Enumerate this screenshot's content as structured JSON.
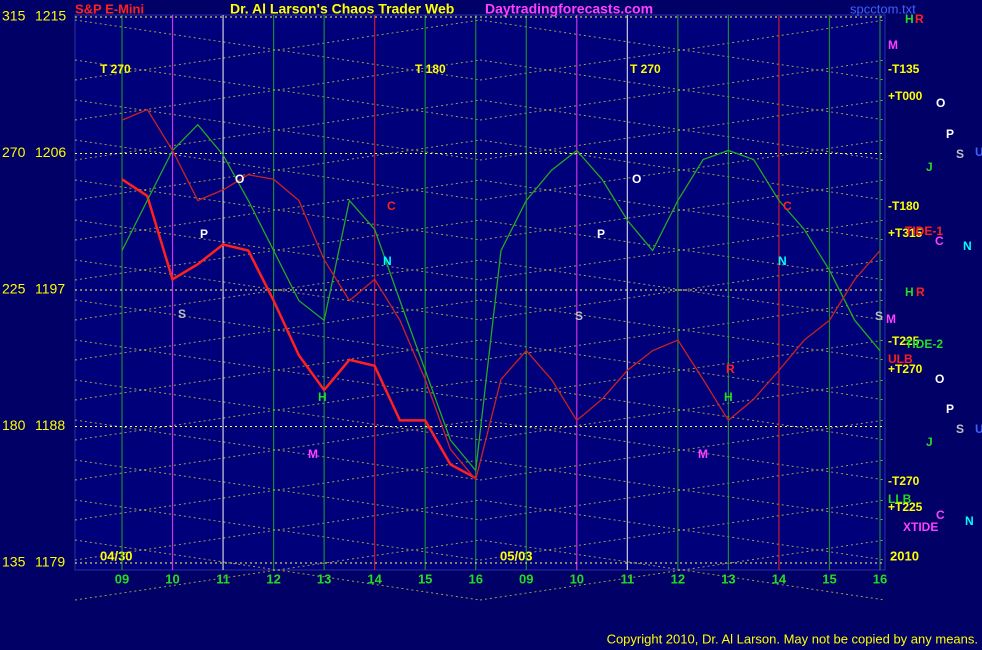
{
  "chart_data": {
    "type": "line",
    "subtitle": "S&P E-Mini",
    "title": "Dr. Al Larson's Chaos Trader Web",
    "site": "Daytradingforecasts.com",
    "file": "spcctom.txt",
    "copyright": "Copyright 2010, Dr. Al Larson. May not be copied by any means.",
    "dates": [
      "04/30",
      "05/03"
    ],
    "year": "2010",
    "categories": [
      "09",
      null,
      "10",
      null,
      "11",
      null,
      "12",
      null,
      "13",
      null,
      "14",
      null,
      "15",
      null,
      "16",
      null,
      "09",
      null,
      "10",
      null,
      "11",
      null,
      "12",
      null,
      "13",
      null,
      "14",
      null,
      "15",
      null,
      "16"
    ],
    "ylim": [
      1179,
      1215
    ],
    "yticks": [
      1215,
      1206,
      1197,
      1188,
      1179
    ],
    "y2lim": [
      135,
      315
    ],
    "y2ticks": [
      315,
      270,
      225,
      180,
      135
    ],
    "grid": true,
    "series": [
      {
        "color": "#ff2020",
        "values": [
          1204.3,
          1203.2,
          1197.7,
          1198.7,
          1200.0,
          1199.6,
          1196.3,
          1192.7,
          1190.4,
          1192.4,
          1192.0,
          1188.4,
          1188.4,
          1185.5,
          1184.6,
          null,
          null,
          null,
          null,
          null,
          null,
          null,
          null,
          null,
          null,
          null,
          null,
          null,
          null,
          null,
          null
        ]
      },
      {
        "color": "#22aa22",
        "values": [
          1199.6,
          1202.9,
          1206.2,
          1207.9,
          1205.9,
          1202.9,
          1199.6,
          1196.3,
          1195.0,
          1202.9,
          1201.0,
          1196.3,
          1191.7,
          1187.1,
          1185.1,
          1199.6,
          1202.9,
          1204.9,
          1206.2,
          1204.3,
          1201.6,
          1199.6,
          1202.9,
          1205.6,
          1206.2,
          1205.6,
          1202.9,
          1201.0,
          1198.3,
          1195.0,
          1193.0
        ]
      },
      {
        "color": "#cc2222",
        "values": [
          1208.2,
          1208.9,
          1206.2,
          1202.9,
          1203.6,
          1204.6,
          1204.3,
          1202.9,
          1199.0,
          1196.3,
          1197.7,
          1195.0,
          1191.1,
          1186.5,
          1184.5,
          1191.1,
          1193.0,
          1191.1,
          1188.4,
          1189.8,
          1191.7,
          1193.0,
          1193.7,
          1191.1,
          1188.4,
          1189.8,
          1191.7,
          1193.7,
          1195.0,
          1197.7,
          1199.6
        ]
      }
    ],
    "annotations": [
      {
        "text": "T 270",
        "color": "#ffff00"
      },
      {
        "text": "T 180",
        "color": "#ffff00"
      },
      {
        "text": "T 270",
        "color": "#ffff00"
      },
      {
        "text": "O",
        "color": "#ffffff"
      },
      {
        "text": "O",
        "color": "#ffffff"
      },
      {
        "text": "P",
        "color": "#ffffff"
      },
      {
        "text": "P",
        "color": "#ffffff"
      },
      {
        "text": "C",
        "color": "#ff2020"
      },
      {
        "text": "C",
        "color": "#ff2020"
      },
      {
        "text": "N",
        "color": "#00ffff"
      },
      {
        "text": "N",
        "color": "#00ffff"
      },
      {
        "text": "S",
        "color": "#c0c0c0"
      },
      {
        "text": "S",
        "color": "#c0c0c0"
      },
      {
        "text": "H",
        "color": "#22dd22"
      },
      {
        "text": "H",
        "color": "#22dd22"
      },
      {
        "text": "M",
        "color": "#ff40ff"
      },
      {
        "text": "M",
        "color": "#ff40ff"
      },
      {
        "text": "R",
        "color": "#ff2020"
      },
      {
        "text": "H",
        "color": "#22dd22"
      },
      {
        "text": "R",
        "color": "#ff2020"
      },
      {
        "text": "M",
        "color": "#ff40ff"
      },
      {
        "text": "-T135",
        "color": "#ffff00"
      },
      {
        "text": "+T000",
        "color": "#ffff00"
      },
      {
        "text": "O",
        "color": "#ffffff"
      },
      {
        "text": "P",
        "color": "#ffffff"
      },
      {
        "text": "S",
        "color": "#c0c0c0"
      },
      {
        "text": "U",
        "color": "#4060ff"
      },
      {
        "text": "J",
        "color": "#22dd22"
      },
      {
        "text": "-T180",
        "color": "#ffff00"
      },
      {
        "text": "+T315",
        "color": "#ffff00"
      },
      {
        "text": "TIDE-1",
        "color": "#ff2020"
      },
      {
        "text": "C",
        "color": "#ff40ff"
      },
      {
        "text": "N",
        "color": "#00ffff"
      },
      {
        "text": "H",
        "color": "#22dd22"
      },
      {
        "text": "R",
        "color": "#ff2020"
      },
      {
        "text": "S",
        "color": "#c0c0c0"
      },
      {
        "text": "M",
        "color": "#ff40ff"
      },
      {
        "text": "-T225",
        "color": "#ffff00"
      },
      {
        "text": "TIDE-2",
        "color": "#22dd22"
      },
      {
        "text": "ULB",
        "color": "#ff2020"
      },
      {
        "text": "+T270",
        "color": "#ffff00"
      },
      {
        "text": "O",
        "color": "#ffffff"
      },
      {
        "text": "P",
        "color": "#ffffff"
      },
      {
        "text": "S",
        "color": "#c0c0c0"
      },
      {
        "text": "U",
        "color": "#4060ff"
      },
      {
        "text": "J",
        "color": "#22dd22"
      },
      {
        "text": "-T270",
        "color": "#ffff00"
      },
      {
        "text": "LLB",
        "color": "#22dd22"
      },
      {
        "text": "+T225",
        "color": "#ffff00"
      },
      {
        "text": "C",
        "color": "#ff40ff"
      },
      {
        "text": "N",
        "color": "#00ffff"
      },
      {
        "text": "XTIDE",
        "color": "#ff40ff"
      }
    ]
  }
}
